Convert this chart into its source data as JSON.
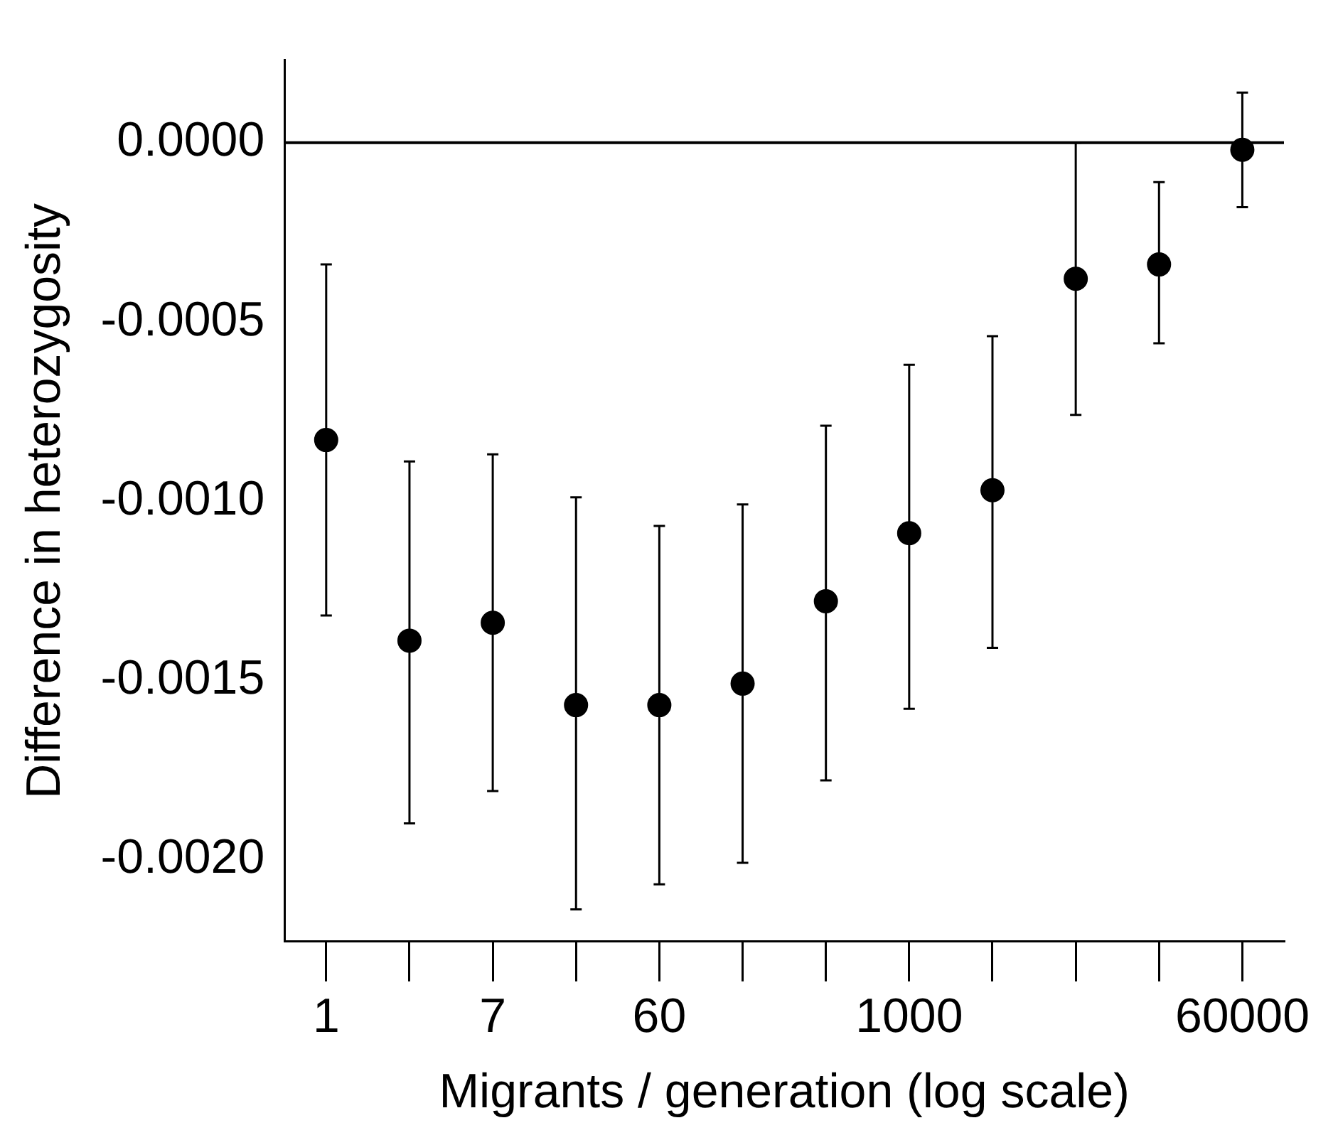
{
  "chart_data": {
    "type": "scatter",
    "xlabel": "Migrants / generation (log scale)",
    "ylabel": "Difference in heterozygosity",
    "categories": [
      "1",
      null,
      "7",
      null,
      "60",
      null,
      null,
      "1000",
      null,
      null,
      null,
      "60000"
    ],
    "series": [
      {
        "color": "#000000",
        "values": [
          -0.00083,
          -0.00139,
          -0.00134,
          -0.00157,
          -0.00157,
          -0.00151,
          -0.00128,
          -0.00109,
          -0.00097,
          -0.00038,
          -0.00034,
          -2e-05
        ],
        "errors": [
          [
            -0.00132,
            -0.00034
          ],
          [
            -0.0019,
            -0.00089
          ],
          [
            -0.00181,
            -0.00087
          ],
          [
            -0.00214,
            -0.00099
          ],
          [
            -0.00207,
            -0.00107
          ],
          [
            -0.00201,
            -0.00101
          ],
          [
            -0.00178,
            -0.00079
          ],
          [
            -0.00158,
            -0.00062
          ],
          [
            -0.00141,
            -0.00054
          ],
          [
            -0.00076,
            0
          ],
          [
            -0.00056,
            -0.00011
          ],
          [
            -0.00018,
            0.00014
          ]
        ]
      }
    ],
    "ylim": [
      -0.00223,
      0.00023
    ],
    "yticks": [
      {
        "value": 0,
        "label": "0.0000"
      },
      {
        "value": -0.0005,
        "label": "-0.0005"
      },
      {
        "value": -0.001,
        "label": "-0.0010"
      },
      {
        "value": -0.0015,
        "label": "-0.0015"
      },
      {
        "value": -0.002,
        "label": "-0.0020"
      }
    ],
    "ref_lines": [
      {
        "axis": "y",
        "value": 0,
        "color": "#000000"
      }
    ],
    "marker": "circle",
    "grid": false,
    "legend": false
  }
}
